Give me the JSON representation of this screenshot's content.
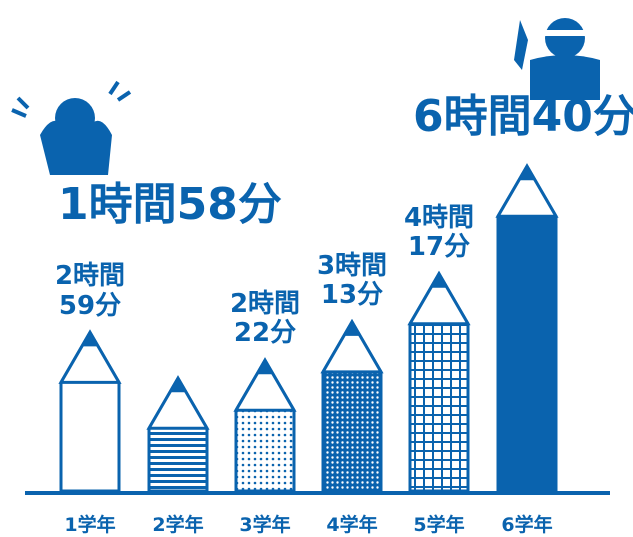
{
  "chart_data": {
    "type": "bar",
    "categories": [
      "1学年",
      "2学年",
      "3学年",
      "4学年",
      "5学年",
      "6学年"
    ],
    "values": [
      179,
      118,
      142,
      193,
      257,
      400
    ],
    "value_labels": [
      "2時間59分",
      "1時間58分",
      "2時間22分",
      "3時間13分",
      "4時間17分",
      "6時間40分"
    ],
    "color": "#0a63ae"
  }
}
